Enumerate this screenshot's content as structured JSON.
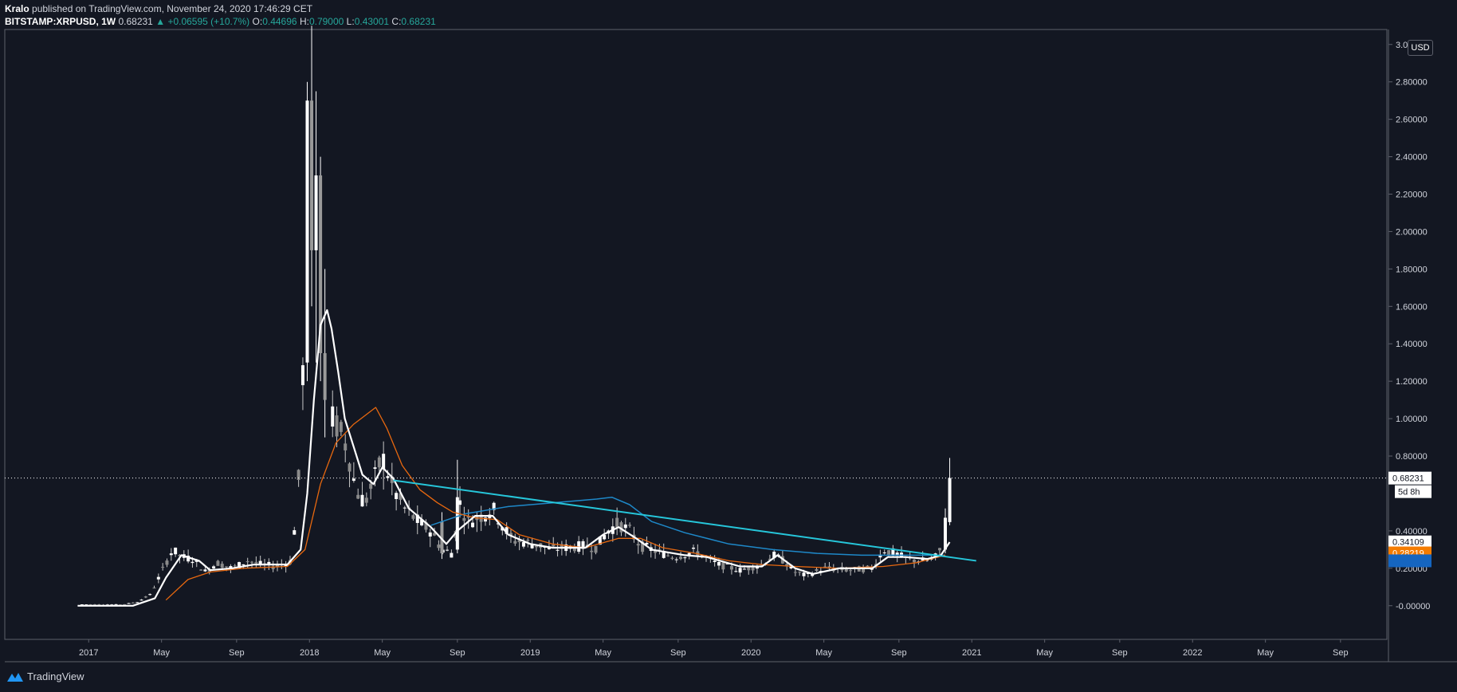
{
  "header": {
    "author": "Kralo",
    "published": "published on TradingView.com, November 24, 2020 17:46:29 CET",
    "symbol": "BITSTAMP:XRPUSD, 1W",
    "last": "0.68231",
    "change_arrow": "▲",
    "change": "+0.06595 (+10.7%)",
    "o_label": "O:",
    "o": "0.44696",
    "h_label": "H:",
    "h": "0.79000",
    "l_label": "L:",
    "l": "0.43001",
    "c_label": "C:",
    "c": "0.68231"
  },
  "currency": "USD",
  "footer": {
    "brand": "TradingView",
    "logo_icon": "tradingview-logo-icon"
  },
  "colors": {
    "background": "#131722",
    "candle": "#ffffff",
    "ma_fast": "#ffffff",
    "ma_mid": "#e8680f",
    "ma_slow": "#1e88c8",
    "trendline": "#26c6da",
    "last_price": "#ffffff",
    "label_ma_mid": "#f57c00",
    "label_ma_slow": "#1565c0"
  },
  "chart_data": {
    "type": "candlestick",
    "interval": "1W",
    "y_axis_labels": [
      "3.0",
      "2.80000",
      "2.60000",
      "2.40000",
      "2.20000",
      "2.00000",
      "1.80000",
      "1.60000",
      "1.40000",
      "1.20000",
      "1.00000",
      "0.80000",
      "0.40000",
      "0.20000",
      "-0.00000"
    ],
    "y_ticks": [
      3.0,
      2.8,
      2.6,
      2.4,
      2.2,
      2.0,
      1.8,
      1.6,
      1.4,
      1.2,
      1.0,
      0.8,
      0.4,
      0.2,
      0.0
    ],
    "ylim": [
      -0.18,
      3.08
    ],
    "x_axis_labels": [
      {
        "label": "2017",
        "t": 2017.0
      },
      {
        "label": "May",
        "t": 2017.33
      },
      {
        "label": "Sep",
        "t": 2017.67
      },
      {
        "label": "2018",
        "t": 2018.0
      },
      {
        "label": "May",
        "t": 2018.33
      },
      {
        "label": "Sep",
        "t": 2018.67
      },
      {
        "label": "2019",
        "t": 2019.0
      },
      {
        "label": "May",
        "t": 2019.33
      },
      {
        "label": "Sep",
        "t": 2019.67
      },
      {
        "label": "2020",
        "t": 2020.0
      },
      {
        "label": "May",
        "t": 2020.33
      },
      {
        "label": "Sep",
        "t": 2020.67
      },
      {
        "label": "2021",
        "t": 2021.0
      },
      {
        "label": "May",
        "t": 2021.33
      },
      {
        "label": "Sep",
        "t": 2021.67
      },
      {
        "label": "2022",
        "t": 2022.0
      },
      {
        "label": "May",
        "t": 2022.33
      },
      {
        "label": "Sep",
        "t": 2022.67
      }
    ],
    "xlim": [
      2016.62,
      2022.88
    ],
    "price_path": [
      [
        2016.97,
        0.007
      ],
      [
        2017.15,
        0.006
      ],
      [
        2017.22,
        0.02
      ],
      [
        2017.28,
        0.06
      ],
      [
        2017.33,
        0.18
      ],
      [
        2017.38,
        0.3
      ],
      [
        2017.42,
        0.26
      ],
      [
        2017.47,
        0.25
      ],
      [
        2017.53,
        0.18
      ],
      [
        2017.58,
        0.23
      ],
      [
        2017.65,
        0.2
      ],
      [
        2017.72,
        0.24
      ],
      [
        2017.78,
        0.22
      ],
      [
        2017.85,
        0.21
      ],
      [
        2017.92,
        0.24
      ],
      [
        2017.96,
        0.8
      ],
      [
        2017.98,
        1.7
      ],
      [
        2018.0,
        2.3
      ],
      [
        2018.02,
        2.5
      ],
      [
        2018.04,
        1.9
      ],
      [
        2018.07,
        1.3
      ],
      [
        2018.1,
        1.0
      ],
      [
        2018.13,
        0.95
      ],
      [
        2018.17,
        0.85
      ],
      [
        2018.21,
        0.62
      ],
      [
        2018.25,
        0.55
      ],
      [
        2018.29,
        0.66
      ],
      [
        2018.33,
        0.8
      ],
      [
        2018.38,
        0.62
      ],
      [
        2018.43,
        0.52
      ],
      [
        2018.5,
        0.44
      ],
      [
        2018.55,
        0.4
      ],
      [
        2018.6,
        0.3
      ],
      [
        2018.65,
        0.28
      ],
      [
        2018.68,
        0.55
      ],
      [
        2018.72,
        0.45
      ],
      [
        2018.78,
        0.48
      ],
      [
        2018.83,
        0.52
      ],
      [
        2018.88,
        0.42
      ],
      [
        2018.92,
        0.35
      ],
      [
        2018.97,
        0.34
      ],
      [
        2019.05,
        0.32
      ],
      [
        2019.1,
        0.3
      ],
      [
        2019.15,
        0.31
      ],
      [
        2019.25,
        0.32
      ],
      [
        2019.3,
        0.31
      ],
      [
        2019.35,
        0.4
      ],
      [
        2019.4,
        0.44
      ],
      [
        2019.45,
        0.4
      ],
      [
        2019.5,
        0.32
      ],
      [
        2019.55,
        0.3
      ],
      [
        2019.6,
        0.28
      ],
      [
        2019.65,
        0.26
      ],
      [
        2019.75,
        0.29
      ],
      [
        2019.85,
        0.22
      ],
      [
        2019.95,
        0.19
      ],
      [
        2020.05,
        0.22
      ],
      [
        2020.1,
        0.27
      ],
      [
        2020.15,
        0.24
      ],
      [
        2020.2,
        0.18
      ],
      [
        2020.25,
        0.16
      ],
      [
        2020.33,
        0.2
      ],
      [
        2020.45,
        0.19
      ],
      [
        2020.55,
        0.2
      ],
      [
        2020.6,
        0.3
      ],
      [
        2020.65,
        0.28
      ],
      [
        2020.7,
        0.25
      ],
      [
        2020.78,
        0.24
      ],
      [
        2020.83,
        0.25
      ],
      [
        2020.86,
        0.3
      ],
      [
        2020.88,
        0.47
      ],
      [
        2020.895,
        0.68
      ]
    ],
    "candles": [
      {
        "t": 2017.99,
        "o": 1.3,
        "h": 2.8,
        "l": 1.2,
        "c": 2.7
      },
      {
        "t": 2018.01,
        "o": 2.7,
        "h": 3.1,
        "l": 1.6,
        "c": 1.9
      },
      {
        "t": 2018.03,
        "o": 1.9,
        "h": 2.75,
        "l": 1.3,
        "c": 2.3
      },
      {
        "t": 2018.05,
        "o": 2.3,
        "h": 2.4,
        "l": 1.2,
        "c": 1.35
      },
      {
        "t": 2018.07,
        "o": 1.35,
        "h": 1.8,
        "l": 0.9,
        "c": 1.1
      },
      {
        "t": 2018.6,
        "o": 0.45,
        "h": 0.5,
        "l": 0.25,
        "c": 0.28
      },
      {
        "t": 2018.67,
        "o": 0.3,
        "h": 0.78,
        "l": 0.28,
        "c": 0.58
      },
      {
        "t": 2020.88,
        "o": 0.3,
        "h": 0.52,
        "l": 0.28,
        "c": 0.47
      },
      {
        "t": 2020.9,
        "o": 0.44696,
        "h": 0.79,
        "l": 0.43001,
        "c": 0.68231
      }
    ],
    "ma_fast": [
      [
        2016.95,
        0.0
      ],
      [
        2017.2,
        0.0
      ],
      [
        2017.3,
        0.04
      ],
      [
        2017.35,
        0.15
      ],
      [
        2017.42,
        0.27
      ],
      [
        2017.5,
        0.24
      ],
      [
        2017.55,
        0.19
      ],
      [
        2017.65,
        0.2
      ],
      [
        2017.75,
        0.22
      ],
      [
        2017.9,
        0.22
      ],
      [
        2017.96,
        0.3
      ],
      [
        2017.99,
        0.6
      ],
      [
        2018.02,
        1.1
      ],
      [
        2018.05,
        1.5
      ],
      [
        2018.08,
        1.58
      ],
      [
        2018.1,
        1.48
      ],
      [
        2018.13,
        1.25
      ],
      [
        2018.16,
        1.0
      ],
      [
        2018.2,
        0.85
      ],
      [
        2018.24,
        0.7
      ],
      [
        2018.29,
        0.65
      ],
      [
        2018.33,
        0.74
      ],
      [
        2018.38,
        0.68
      ],
      [
        2018.45,
        0.52
      ],
      [
        2018.55,
        0.42
      ],
      [
        2018.62,
        0.33
      ],
      [
        2018.67,
        0.4
      ],
      [
        2018.75,
        0.48
      ],
      [
        2018.83,
        0.48
      ],
      [
        2018.9,
        0.38
      ],
      [
        2019.0,
        0.33
      ],
      [
        2019.1,
        0.31
      ],
      [
        2019.25,
        0.31
      ],
      [
        2019.33,
        0.38
      ],
      [
        2019.4,
        0.42
      ],
      [
        2019.48,
        0.36
      ],
      [
        2019.55,
        0.3
      ],
      [
        2019.7,
        0.27
      ],
      [
        2019.8,
        0.26
      ],
      [
        2019.95,
        0.21
      ],
      [
        2020.05,
        0.21
      ],
      [
        2020.12,
        0.27
      ],
      [
        2020.2,
        0.2
      ],
      [
        2020.28,
        0.17
      ],
      [
        2020.4,
        0.2
      ],
      [
        2020.55,
        0.2
      ],
      [
        2020.62,
        0.26
      ],
      [
        2020.7,
        0.26
      ],
      [
        2020.8,
        0.25
      ],
      [
        2020.86,
        0.27
      ],
      [
        2020.9,
        0.34
      ]
    ],
    "ma_mid": [
      [
        2017.35,
        0.03
      ],
      [
        2017.45,
        0.14
      ],
      [
        2017.55,
        0.18
      ],
      [
        2017.7,
        0.2
      ],
      [
        2017.9,
        0.21
      ],
      [
        2017.98,
        0.3
      ],
      [
        2018.05,
        0.65
      ],
      [
        2018.12,
        0.87
      ],
      [
        2018.2,
        0.97
      ],
      [
        2018.3,
        1.06
      ],
      [
        2018.35,
        0.95
      ],
      [
        2018.42,
        0.75
      ],
      [
        2018.5,
        0.62
      ],
      [
        2018.58,
        0.55
      ],
      [
        2018.65,
        0.5
      ],
      [
        2018.75,
        0.47
      ],
      [
        2018.85,
        0.46
      ],
      [
        2018.95,
        0.38
      ],
      [
        2019.1,
        0.33
      ],
      [
        2019.25,
        0.31
      ],
      [
        2019.4,
        0.36
      ],
      [
        2019.5,
        0.36
      ],
      [
        2019.6,
        0.31
      ],
      [
        2019.75,
        0.28
      ],
      [
        2019.9,
        0.24
      ],
      [
        2020.05,
        0.22
      ],
      [
        2020.2,
        0.21
      ],
      [
        2020.4,
        0.2
      ],
      [
        2020.6,
        0.21
      ],
      [
        2020.75,
        0.23
      ],
      [
        2020.88,
        0.27
      ]
    ],
    "ma_slow": [
      [
        2018.55,
        0.43
      ],
      [
        2018.7,
        0.49
      ],
      [
        2018.9,
        0.53
      ],
      [
        2019.1,
        0.55
      ],
      [
        2019.3,
        0.57
      ],
      [
        2019.37,
        0.58
      ],
      [
        2019.45,
        0.54
      ],
      [
        2019.55,
        0.45
      ],
      [
        2019.7,
        0.39
      ],
      [
        2019.9,
        0.33
      ],
      [
        2020.1,
        0.3
      ],
      [
        2020.3,
        0.28
      ],
      [
        2020.5,
        0.27
      ],
      [
        2020.7,
        0.27
      ],
      [
        2020.88,
        0.27
      ]
    ],
    "trendline": {
      "from": [
        2018.38,
        0.67
      ],
      "to": [
        2021.02,
        0.24
      ]
    },
    "last_price": {
      "value": "0.68231",
      "v": 0.68231,
      "countdown": "5d 8h"
    },
    "price_labels": [
      {
        "value": "0.34109",
        "v": 0.34109,
        "style": "light"
      },
      {
        "value": "0.28219",
        "v": 0.28219,
        "style": "orange"
      },
      {
        "value": "",
        "v": 0.24,
        "style": "blue"
      }
    ]
  }
}
